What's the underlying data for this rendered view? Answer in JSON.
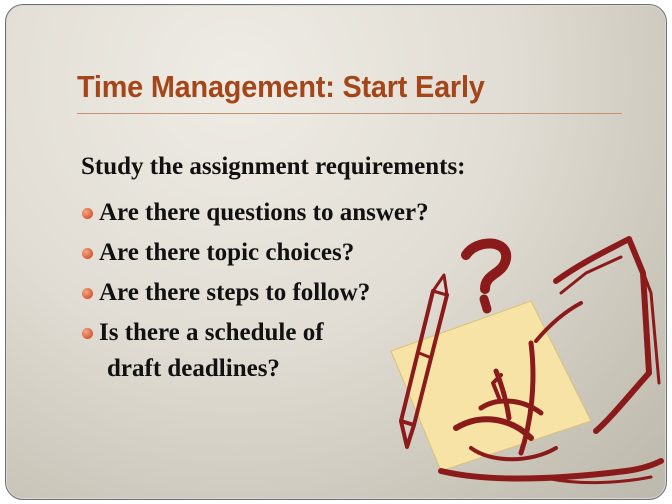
{
  "slide": {
    "title": "Time Management: Start Early",
    "intro": "Study the assignment requirements:",
    "bullets": [
      {
        "text": "Are there questions to answer?"
      },
      {
        "text": "Are there topic choices?"
      },
      {
        "text": "Are there steps to follow?"
      },
      {
        "text": "Is there a schedule of",
        "continuation": "draft deadlines?"
      }
    ]
  },
  "colors": {
    "title": "#a5461a",
    "bullet": "#d85a32",
    "text": "#111111",
    "clipart_stroke": "#8b1a1a",
    "note_paper": "#f7e3a6"
  },
  "clipart": {
    "icon": "question-mark-notebook-pencil-icon"
  }
}
